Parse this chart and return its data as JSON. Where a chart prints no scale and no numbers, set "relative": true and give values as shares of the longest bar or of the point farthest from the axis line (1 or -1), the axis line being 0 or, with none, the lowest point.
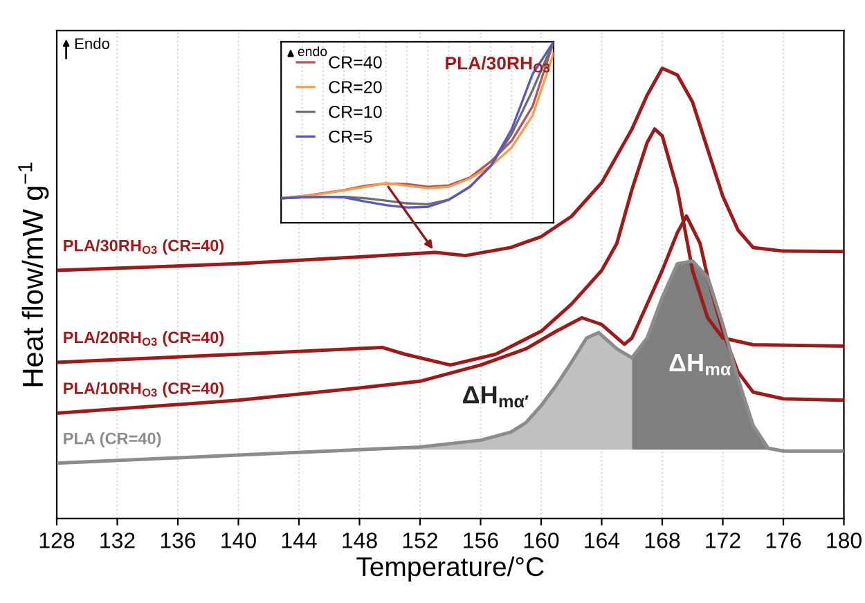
{
  "chart_data": [
    {
      "type": "line",
      "relative": true,
      "xlabel": "Temperature/°C",
      "ylabel": "Heat flow/mW g$^{−1}$",
      "xlim": [
        128,
        180
      ],
      "xticks": [
        128,
        132,
        136,
        140,
        144,
        148,
        152,
        156,
        160,
        164,
        168,
        172,
        176,
        180
      ],
      "grid": "x",
      "legend": false,
      "annotations": [
        "Endo"
      ],
      "series": [
        {
          "name": "PLA/30RH$_{O3}$ (CR=40)",
          "color": "#9b1c1c",
          "x": [
            128,
            140,
            148,
            153,
            155,
            158,
            160,
            162,
            164,
            166,
            167,
            168,
            169,
            170,
            171,
            172,
            173,
            174,
            176,
            180
          ],
          "values": [
            0.551,
            0.566,
            0.581,
            0.591,
            0.584,
            0.602,
            0.626,
            0.671,
            0.746,
            0.865,
            0.94,
            1.0,
            0.985,
            0.925,
            0.82,
            0.716,
            0.641,
            0.602,
            0.594,
            0.593
          ]
        },
        {
          "name": "PLA/20RH$_{O3}$ (CR=40)",
          "color": "#9b1c1c",
          "x": [
            128,
            140,
            149.5,
            151,
            154,
            157,
            160,
            162,
            164,
            165,
            166,
            167,
            167.5,
            168,
            169,
            170,
            171,
            172,
            174,
            180
          ],
          "values": [
            0.347,
            0.365,
            0.38,
            0.365,
            0.341,
            0.365,
            0.416,
            0.476,
            0.551,
            0.611,
            0.731,
            0.835,
            0.865,
            0.85,
            0.731,
            0.551,
            0.446,
            0.401,
            0.386,
            0.383
          ]
        },
        {
          "name": "PLA/10RH$_{O3}$ (CR=40)",
          "color": "#9b1c1c",
          "x": [
            128,
            140,
            148,
            152,
            156,
            159,
            161,
            162.7,
            164,
            165.5,
            166,
            167,
            168,
            169,
            169.6,
            170.5,
            171,
            172,
            173,
            174,
            176,
            180
          ],
          "values": [
            0.234,
            0.263,
            0.29,
            0.305,
            0.341,
            0.377,
            0.416,
            0.446,
            0.431,
            0.387,
            0.401,
            0.476,
            0.551,
            0.635,
            0.672,
            0.611,
            0.536,
            0.416,
            0.326,
            0.281,
            0.266,
            0.263
          ]
        },
        {
          "name": "PLA (CR=40)",
          "color": "#8c8c8c",
          "x": [
            128,
            140,
            148,
            152,
            156,
            158,
            159,
            160,
            161,
            162,
            163,
            163.8,
            165,
            166,
            167,
            168,
            169,
            170,
            171,
            172,
            173,
            174,
            175,
            176,
            180
          ],
          "values": [
            0.123,
            0.141,
            0.153,
            0.159,
            0.174,
            0.192,
            0.213,
            0.251,
            0.296,
            0.347,
            0.401,
            0.413,
            0.377,
            0.357,
            0.401,
            0.491,
            0.566,
            0.572,
            0.536,
            0.431,
            0.311,
            0.207,
            0.156,
            0.15,
            0.15
          ]
        },
        {
          "name": "ΔH$_{mα′}$",
          "type": "area",
          "color": "#c0c0c0",
          "x": [
            148,
            152,
            156,
            158,
            159,
            160,
            161,
            162,
            163,
            163.8,
            165,
            166
          ],
          "values": [
            0.153,
            0.159,
            0.174,
            0.192,
            0.213,
            0.251,
            0.296,
            0.347,
            0.401,
            0.413,
            0.377,
            0.357
          ]
        },
        {
          "name": "ΔH$_{mα}$",
          "type": "area",
          "color": "#7f7f7f",
          "x": [
            166,
            167,
            168,
            169,
            170,
            171,
            172,
            173,
            174,
            175
          ],
          "values": [
            0.357,
            0.401,
            0.491,
            0.566,
            0.572,
            0.536,
            0.431,
            0.311,
            0.207,
            0.156
          ]
        }
      ]
    },
    {
      "type": "line",
      "relative": true,
      "title": "PLA/30RH$_{O3}$",
      "categories": [
        null,
        null,
        null,
        null,
        null,
        null,
        null,
        null,
        null,
        null,
        null,
        null,
        null,
        null
      ],
      "grid": "x",
      "legend": "top left",
      "annotations": [
        "endo"
      ],
      "series": [
        {
          "name": "CR=40",
          "color": "#b5545c",
          "values": [
            0.135,
            0.147,
            0.163,
            0.18,
            0.204,
            0.216,
            0.214,
            0.198,
            0.206,
            0.249,
            0.338,
            0.453,
            0.644,
            1.0
          ]
        },
        {
          "name": "CR=20",
          "color": "#f0a050",
          "values": [
            0.135,
            0.147,
            0.16,
            0.178,
            0.198,
            0.219,
            0.204,
            0.191,
            0.198,
            0.244,
            0.313,
            0.415,
            0.593,
            0.936
          ]
        },
        {
          "name": "CR=10",
          "color": "#6e6e6e",
          "values": [
            0.135,
            0.14,
            0.143,
            0.143,
            0.135,
            0.122,
            0.107,
            0.102,
            0.127,
            0.198,
            0.313,
            0.491,
            0.733,
            1.0
          ]
        },
        {
          "name": "CR=5",
          "color": "#5a5ab4",
          "values": [
            0.135,
            0.14,
            0.143,
            0.14,
            0.117,
            0.097,
            0.084,
            0.087,
            0.127,
            0.198,
            0.313,
            0.517,
            0.822,
            1.0
          ]
        }
      ]
    }
  ]
}
